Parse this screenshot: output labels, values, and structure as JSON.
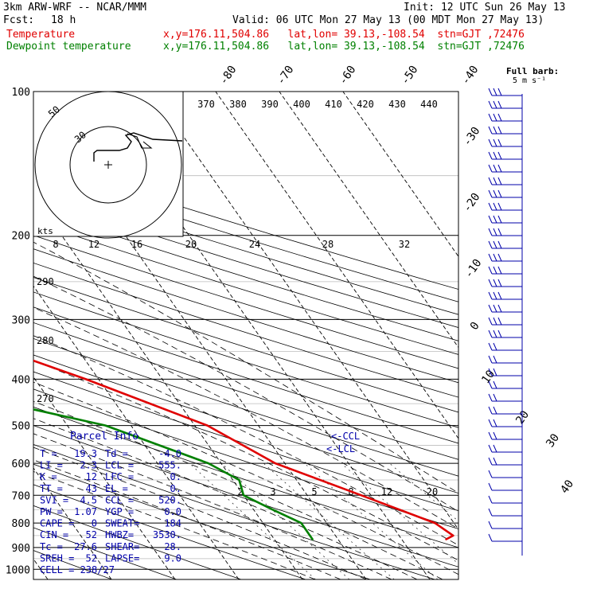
{
  "header": {
    "model": "3km ARW-WRF -- NCAR/MMM",
    "init": "Init: 12 UTC Sun 26 May 13",
    "fcst_label": "Fcst:",
    "fcst_value": "18 h",
    "valid": "Valid: 06 UTC Mon 27 May 13 (00 MDT Mon 27 May 13)",
    "temp_label": "Temperature",
    "dew_label": "Dewpoint temperature",
    "loc_text": "x,y=176.11,504.86   lat,lon= 39.13,-108.54  stn=GJT ,72476"
  },
  "colors": {
    "temperature": "#e00000",
    "dewpoint": "#008000",
    "parcel": "#0000aa",
    "grid": "#000000",
    "wind": "#0000aa"
  },
  "chart_data": {
    "type": "line",
    "diagram": "skew-T log-p",
    "y_axis": {
      "ticks": [
        "100",
        "200",
        "300",
        "400",
        "500",
        "600",
        "700",
        "800",
        "900",
        "1000"
      ],
      "values": [
        100,
        200,
        300,
        400,
        500,
        600,
        700,
        800,
        900,
        1000
      ]
    },
    "isotherm_labels": [
      "-80",
      "-70",
      "-60",
      "-50",
      "-40",
      "-30",
      "-20",
      "-10",
      "0",
      "10",
      "20",
      "30",
      "40"
    ],
    "isotherm_values": [
      -80,
      -70,
      -60,
      -50,
      -40,
      -30,
      -20,
      -10,
      0,
      10,
      20,
      30,
      40
    ],
    "theta_labels": [
      "370",
      "380",
      "390",
      "400",
      "410",
      "420",
      "430",
      "440"
    ],
    "dry_adiabat_labels": [
      "290",
      "280",
      "270"
    ],
    "mixing_ratio_labels": [
      "2",
      "3",
      "5",
      "8",
      "12",
      "20"
    ],
    "series": [
      {
        "name": "Temperature",
        "points": [
          [
            100,
            -56
          ],
          [
            130,
            -56
          ],
          [
            170,
            -57
          ],
          [
            200,
            -57.5
          ],
          [
            250,
            -51
          ],
          [
            300,
            -42
          ],
          [
            400,
            -22
          ],
          [
            500,
            -8
          ],
          [
            600,
            -1.5
          ],
          [
            700,
            8.5
          ],
          [
            800,
            17
          ],
          [
            850,
            18.5
          ],
          [
            865,
            17
          ]
        ]
      },
      {
        "name": "Dewpoint temperature",
        "points": [
          [
            100,
            -73
          ],
          [
            150,
            -75
          ],
          [
            200,
            -79
          ],
          [
            250,
            -73
          ],
          [
            300,
            -65
          ],
          [
            400,
            -50
          ],
          [
            450,
            -37
          ],
          [
            500,
            -24
          ],
          [
            600,
            -12
          ],
          [
            650,
            -9
          ],
          [
            700,
            -10
          ],
          [
            750,
            -7
          ],
          [
            800,
            -4
          ],
          [
            865,
            -4
          ]
        ]
      }
    ],
    "hodograph": {
      "speed_rings": [
        "30",
        "50"
      ],
      "units": "kts",
      "speed_scale": [
        "8",
        "12",
        "16",
        "20",
        "24",
        "28",
        "32"
      ]
    },
    "wind_panel": {
      "title": "Full barb:",
      "subtitle": "5 m s⁻¹",
      "barb_count": 36
    },
    "annotations": [
      "<-CCL",
      "<-LCL"
    ]
  },
  "parcel": {
    "title": "Parcel Info",
    "rows": [
      [
        "T  =",
        "19.3",
        "Td =",
        "-4.0"
      ],
      [
        "LI =",
        "2.3",
        "LCL =",
        "555."
      ],
      [
        "K  =",
        "12",
        "LFC =",
        "0."
      ],
      [
        "TT =",
        "43",
        "EL  =",
        "0."
      ],
      [
        "SVI =",
        "4.5",
        "CCL =",
        "520."
      ],
      [
        "PW =",
        "1.07",
        "YGP =",
        "0.0"
      ],
      [
        "CAPE =",
        "0",
        "SWEAT=",
        "184"
      ],
      [
        "CIN =",
        "52",
        "HWBZ=",
        "3530."
      ],
      [
        "Tc =",
        "27.6",
        "SHEAR=",
        "28."
      ],
      [
        "SREH =",
        "52",
        "LAPSE=",
        "9.0"
      ]
    ],
    "cell": "CELL = 238/27"
  }
}
